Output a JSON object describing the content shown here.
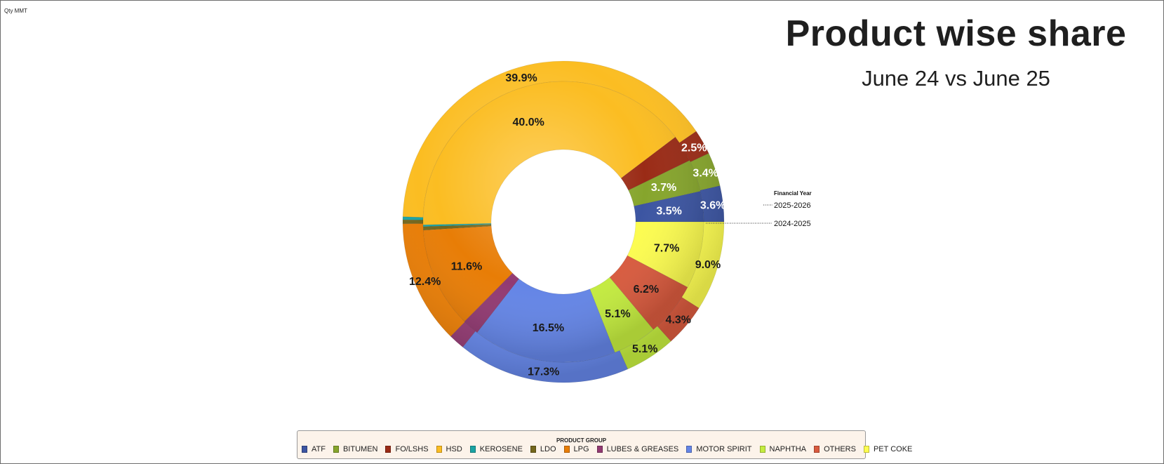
{
  "header": {
    "qty_label": "Qty MMT",
    "title": "Product wise share",
    "subtitle": "June 24 vs June 25"
  },
  "chart_data": {
    "type": "donut",
    "ring_legend_title": "Financial Year",
    "categories": [
      "ATF",
      "BITUMEN",
      "FO/LSHS",
      "HSD",
      "KEROSENE",
      "LDO",
      "LPG",
      "LUBES & GREASES",
      "MOTOR SPIRIT",
      "NAPHTHA",
      "OTHERS",
      "PET COKE"
    ],
    "colors": [
      "#3c55a2",
      "#86a52c",
      "#9a2b16",
      "#fbbd22",
      "#1aa3a3",
      "#73661c",
      "#e87d06",
      "#923a72",
      "#6485e6",
      "#c4ec3f",
      "#d85a3e",
      "#fcfc50"
    ],
    "series": [
      {
        "name": "2025-2026",
        "values": [
          3.6,
          3.4,
          2.5,
          39.9,
          0.3,
          0.4,
          12.4,
          1.6,
          17.3,
          5.1,
          4.3,
          9.0
        ],
        "labels": [
          "3.6%",
          "3.4%",
          "2.5%",
          "39.9%",
          "",
          "",
          "12.4%",
          "",
          "17.3%",
          "5.1%",
          "4.3%",
          "9.0%"
        ]
      },
      {
        "name": "2024-2025",
        "values": [
          3.5,
          3.7,
          3.1,
          40.0,
          0.2,
          0.4,
          11.6,
          1.9,
          16.5,
          5.1,
          6.2,
          7.7
        ],
        "labels": [
          "3.5%",
          "3.7%",
          "",
          "40.0%",
          "",
          "",
          "11.6%",
          "",
          "16.5%",
          "5.1%",
          "6.2%",
          "7.7%"
        ]
      }
    ],
    "legend": {
      "title": "PRODUCT GROUP",
      "placement": "bottom"
    }
  }
}
